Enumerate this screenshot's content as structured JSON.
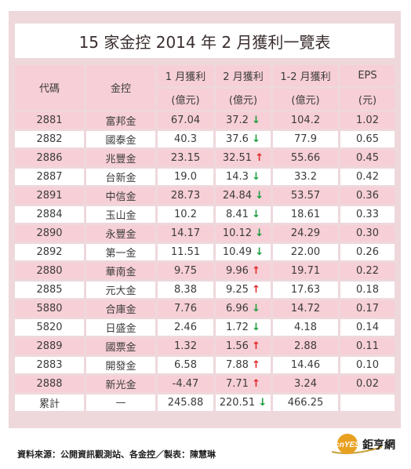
{
  "title": "15 家金控 2014 年 2 月獲利一覽表",
  "header": {
    "code": "代碼",
    "name": "金控",
    "jan": "1 月獲利",
    "feb": "2 月獲利",
    "janfeb": "1-2 月獲利",
    "eps": "EPS",
    "jan_unit": "(億元)",
    "feb_unit": "(億元)",
    "janfeb_unit": "(億元)",
    "eps_unit": "(元)"
  },
  "rows": [
    {
      "code": "2881",
      "name": "富邦金",
      "jan": "67.04",
      "feb": "37.2",
      "dir": "down",
      "janfeb": "104.2",
      "eps": "1.02"
    },
    {
      "code": "2882",
      "name": "國泰金",
      "jan": "40.3",
      "feb": "37.6",
      "dir": "down",
      "janfeb": "77.9",
      "eps": "0.65"
    },
    {
      "code": "2886",
      "name": "兆豐金",
      "jan": "23.15",
      "feb": "32.51",
      "dir": "up",
      "janfeb": "55.66",
      "eps": "0.45"
    },
    {
      "code": "2887",
      "name": "台新金",
      "jan": "19.0",
      "feb": "14.3",
      "dir": "down",
      "janfeb": "33.2",
      "eps": "0.42"
    },
    {
      "code": "2891",
      "name": "中信金",
      "jan": "28.73",
      "feb": "24.84",
      "dir": "down",
      "janfeb": "53.57",
      "eps": "0.36"
    },
    {
      "code": "2884",
      "name": "玉山金",
      "jan": "10.2",
      "feb": "8.41",
      "dir": "down",
      "janfeb": "18.61",
      "eps": "0.33"
    },
    {
      "code": "2890",
      "name": "永豐金",
      "jan": "14.17",
      "feb": "10.12",
      "dir": "down",
      "janfeb": "24.29",
      "eps": "0.30"
    },
    {
      "code": "2892",
      "name": "第一金",
      "jan": "11.51",
      "feb": "10.49",
      "dir": "down",
      "janfeb": "22.00",
      "eps": "0.26"
    },
    {
      "code": "2880",
      "name": "華南金",
      "jan": "9.75",
      "feb": "9.96",
      "dir": "up",
      "janfeb": "19.71",
      "eps": "0.22"
    },
    {
      "code": "2885",
      "name": "元大金",
      "jan": "8.38",
      "feb": "9.25",
      "dir": "up",
      "janfeb": "17.63",
      "eps": "0.18"
    },
    {
      "code": "5880",
      "name": "合庫金",
      "jan": "7.76",
      "feb": "6.96",
      "dir": "down",
      "janfeb": "14.72",
      "eps": "0.17"
    },
    {
      "code": "5820",
      "name": "日盛金",
      "jan": "2.46",
      "feb": "1.72",
      "dir": "down",
      "janfeb": "4.18",
      "eps": "0.14"
    },
    {
      "code": "2889",
      "name": "國票金",
      "jan": "1.32",
      "feb": "1.56",
      "dir": "up",
      "janfeb": "2.88",
      "eps": "0.11"
    },
    {
      "code": "2883",
      "name": "開發金",
      "jan": "6.58",
      "feb": "7.88",
      "dir": "up",
      "janfeb": "14.46",
      "eps": "0.10"
    },
    {
      "code": "2888",
      "name": "新光金",
      "jan": "-4.47",
      "feb": "7.71",
      "dir": "up",
      "janfeb": "3.24",
      "eps": "0.02"
    },
    {
      "code": "累計",
      "name": "—",
      "jan": "245.88",
      "feb": "220.51",
      "dir": "down",
      "janfeb": "466.25",
      "eps": ""
    }
  ],
  "arrows": {
    "up": "↑",
    "down": "↓"
  },
  "colors": {
    "up": "#e02424",
    "down": "#169c3a",
    "pink": "#f7cfd6"
  },
  "footer": "資料來源：公開資訊觀測站、各金控／製表：陳慧琳",
  "logo": {
    "brand": "cnYES",
    "text": "鉅亨網"
  }
}
